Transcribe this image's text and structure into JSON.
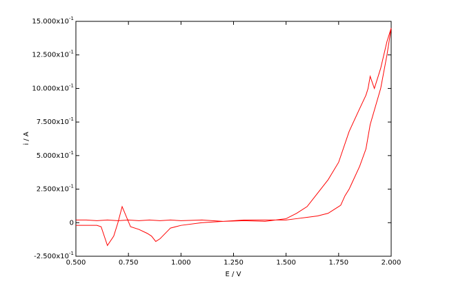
{
  "chart_data": {
    "type": "line",
    "x_label": "E / V",
    "y_label": "i / A",
    "xlim": [
      0.5,
      2.0
    ],
    "xticks": [
      {
        "value": 0.5,
        "label": "0.500"
      },
      {
        "value": 0.75,
        "label": "0.750"
      },
      {
        "value": 1.0,
        "label": "1.000"
      },
      {
        "value": 1.25,
        "label": "1.250"
      },
      {
        "value": 1.5,
        "label": "1.500"
      },
      {
        "value": 1.75,
        "label": "1.750"
      },
      {
        "value": 2.0,
        "label": "2.000"
      }
    ],
    "ylim": [
      -0.25,
      1.5
    ],
    "yticks": [
      {
        "value": -0.25,
        "label": "-2.500x10-1"
      },
      0,
      {
        "value": 0.25,
        "label": "2.500x10-1"
      },
      {
        "value": 0.5,
        "label": "5.000x10-1"
      },
      {
        "value": 0.75,
        "label": "7.500x10-1"
      },
      {
        "value": 1.0,
        "label": "10.000x10-1"
      },
      {
        "value": 1.25,
        "label": "12.500x10-1"
      },
      {
        "value": 1.5,
        "label": "15.000x10-1"
      }
    ],
    "series": [
      {
        "color": "#ff0000",
        "x": [
          0.5,
          0.55,
          0.6,
          0.65,
          0.7,
          0.75,
          0.8,
          0.85,
          0.9,
          0.95,
          1.0,
          1.1,
          1.2,
          1.3,
          1.4,
          1.45,
          1.5,
          1.55,
          1.6,
          1.65,
          1.7,
          1.75,
          1.76,
          1.78,
          1.8,
          1.85,
          1.88,
          1.9,
          1.95,
          1.98,
          2.0,
          1.98,
          1.95,
          1.92,
          1.9,
          1.89,
          1.88,
          1.85,
          1.8,
          1.75,
          1.7,
          1.65,
          1.6,
          1.55,
          1.5,
          1.45,
          1.4,
          1.3,
          1.2,
          1.1,
          1.0,
          0.95,
          0.9,
          0.88,
          0.86,
          0.84,
          0.8,
          0.76,
          0.72,
          0.7,
          0.68,
          0.65,
          0.62,
          0.6,
          0.55,
          0.5
        ],
        "values": [
          0.02,
          0.02,
          0.015,
          0.02,
          0.015,
          0.02,
          0.015,
          0.02,
          0.015,
          0.02,
          0.015,
          0.02,
          0.01,
          0.02,
          0.02,
          0.02,
          0.02,
          0.03,
          0.04,
          0.05,
          0.07,
          0.12,
          0.13,
          0.2,
          0.25,
          0.42,
          0.55,
          0.73,
          1.0,
          1.25,
          1.45,
          1.35,
          1.15,
          1.0,
          1.09,
          1.0,
          0.95,
          0.85,
          0.68,
          0.45,
          0.32,
          0.22,
          0.12,
          0.07,
          0.03,
          0.02,
          0.01,
          0.015,
          0.01,
          0.0,
          -0.02,
          -0.04,
          -0.12,
          -0.14,
          -0.1,
          -0.08,
          -0.05,
          -0.03,
          0.12,
          0.0,
          -0.1,
          -0.17,
          -0.03,
          -0.02,
          -0.02,
          -0.02
        ]
      }
    ]
  }
}
